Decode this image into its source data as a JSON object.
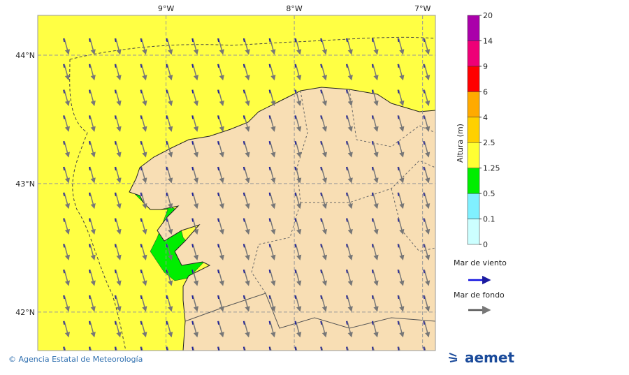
{
  "map": {
    "lon_range": [
      -10,
      -6.9
    ],
    "lat_range": [
      41.7,
      44.31
    ],
    "lon_ticks": [
      {
        "value": -9,
        "label": "9°W"
      },
      {
        "value": -8,
        "label": "8°W"
      },
      {
        "value": -7,
        "label": "7°W"
      }
    ],
    "lat_ticks": [
      {
        "value": 44,
        "label": "44°N"
      },
      {
        "value": 43,
        "label": "43°N"
      },
      {
        "value": 42,
        "label": "42°N"
      }
    ]
  },
  "colorbar": {
    "label": "Altura (m)",
    "levels": [
      0,
      0.1,
      0.5,
      1.25,
      2.5,
      4,
      6,
      9,
      14,
      20
    ],
    "colors": [
      "#ccffff",
      "#80f0ff",
      "#00ee00",
      "#ffff33",
      "#ffd000",
      "#ffaa00",
      "#ff0000",
      "#ee0077",
      "#aa00aa"
    ]
  },
  "legend": {
    "wind_sea": "Mar de viento",
    "swell": "Mar de fondo"
  },
  "footer": {
    "credit": "© Agencia Estatal de Meteorología",
    "logo": "aemet"
  }
}
